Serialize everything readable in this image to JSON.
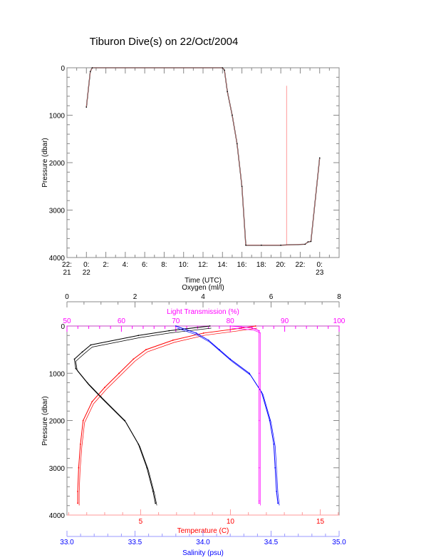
{
  "title": "Tiburon Dive(s) on 22/Oct/2004",
  "colors": {
    "axis": "#888888",
    "black": "#000000",
    "red": "#ff0000",
    "blue": "#0000ff",
    "magenta": "#ff00ff",
    "pink": "#ff9999",
    "lightblue": "#9999ff"
  },
  "chart_data": [
    {
      "type": "line",
      "title": "Tiburon Dive(s) on 22/Oct/2004",
      "xlabel": "Time (UTC)",
      "ylabel": "Pressure (dbar)",
      "xlim": [
        -2,
        26
      ],
      "ylim": [
        4000,
        0
      ],
      "xticks": [
        {
          "v": -2,
          "l1": "22:",
          "l2": "21"
        },
        {
          "v": 0,
          "l1": "0:",
          "l2": "22"
        },
        {
          "v": 2,
          "l1": "2:",
          "l2": ""
        },
        {
          "v": 4,
          "l1": "4:",
          "l2": ""
        },
        {
          "v": 6,
          "l1": "6:",
          "l2": ""
        },
        {
          "v": 8,
          "l1": "8:",
          "l2": ""
        },
        {
          "v": 10,
          "l1": "10:",
          "l2": ""
        },
        {
          "v": 12,
          "l1": "12:",
          "l2": ""
        },
        {
          "v": 14,
          "l1": "14:",
          "l2": ""
        },
        {
          "v": 16,
          "l1": "16:",
          "l2": ""
        },
        {
          "v": 18,
          "l1": "18:",
          "l2": ""
        },
        {
          "v": 20,
          "l1": "20:",
          "l2": ""
        },
        {
          "v": 22,
          "l1": "22:",
          "l2": ""
        },
        {
          "v": 24,
          "l1": "0:",
          "l2": "23"
        }
      ],
      "yticks": [
        "0",
        "1000",
        "2000",
        "3000",
        "4000"
      ],
      "series": [
        {
          "name": "pressure",
          "x": [
            0,
            0.4,
            0.6,
            14,
            14.2,
            14.5,
            15,
            15.5,
            16,
            16.4,
            18,
            20,
            22.5,
            22.8,
            23.1,
            24
          ],
          "y": [
            830,
            80,
            0,
            0,
            50,
            500,
            1000,
            1600,
            2500,
            3740,
            3740,
            3740,
            3720,
            3670,
            3660,
            1900
          ]
        },
        {
          "name": "spike",
          "x": [
            20.6,
            20.6
          ],
          "y": [
            380,
            3740
          ]
        }
      ]
    },
    {
      "type": "line",
      "ylabel": "Pressure (dbar)",
      "ylim": [
        4000,
        0
      ],
      "yticks": [
        "0",
        "1000",
        "2000",
        "3000",
        "4000"
      ],
      "axes": {
        "oxygen": {
          "label": "Oxygen (ml/l)",
          "lim": [
            0,
            8
          ],
          "ticks": [
            "0",
            "2",
            "4",
            "6",
            "8"
          ]
        },
        "light": {
          "label": "Light Transmission (%)",
          "lim": [
            50,
            100
          ],
          "ticks": [
            "50",
            "60",
            "70",
            "80",
            "90",
            "100"
          ]
        },
        "temperature": {
          "label": "Temperature (C)",
          "lim": [
            0.9,
            16.05
          ],
          "ticks": [
            "5",
            "10",
            "15"
          ]
        },
        "salinity": {
          "label": "Salinity (psu)",
          "lim": [
            33.0,
            35.0
          ],
          "ticks": [
            "33.0",
            "33.5",
            "34.0",
            "34.5",
            "35.0"
          ]
        }
      },
      "series": [
        {
          "name": "Temperature",
          "axis": "temperature",
          "p": [
            0,
            50,
            150,
            300,
            500,
            700,
            1000,
            1300,
            1600,
            2000,
            2500,
            3000,
            3500,
            3750
          ],
          "v": [
            11.4,
            10.5,
            8.5,
            6.8,
            5.3,
            4.6,
            3.8,
            3.0,
            2.3,
            1.8,
            1.65,
            1.55,
            1.5,
            1.5
          ]
        },
        {
          "name": "Oxygen",
          "axis": "oxygen",
          "p": [
            0,
            100,
            200,
            400,
            550,
            700,
            900,
            1200,
            1500,
            2000,
            2500,
            3000,
            3500,
            3750
          ],
          "v": [
            4.2,
            3.0,
            2.1,
            0.7,
            0.45,
            0.22,
            0.26,
            0.6,
            1.0,
            1.7,
            2.1,
            2.35,
            2.53,
            2.6
          ]
        },
        {
          "name": "Salinity",
          "axis": "salinity",
          "p": [
            0,
            150,
            300,
            500,
            700,
            1000,
            1400,
            2000,
            2500,
            3000,
            3500,
            3750
          ],
          "v": [
            33.8,
            33.95,
            34.04,
            34.12,
            34.2,
            34.34,
            34.43,
            34.49,
            34.52,
            34.53,
            34.54,
            34.55
          ]
        },
        {
          "name": "Light Transmission",
          "axis": "light",
          "p": [
            0,
            40,
            100,
            1000,
            2000,
            3000,
            3700,
            3750
          ],
          "v": [
            80,
            84,
            85.3,
            85.3,
            85.3,
            85.3,
            85.3,
            85.3
          ]
        }
      ]
    }
  ]
}
